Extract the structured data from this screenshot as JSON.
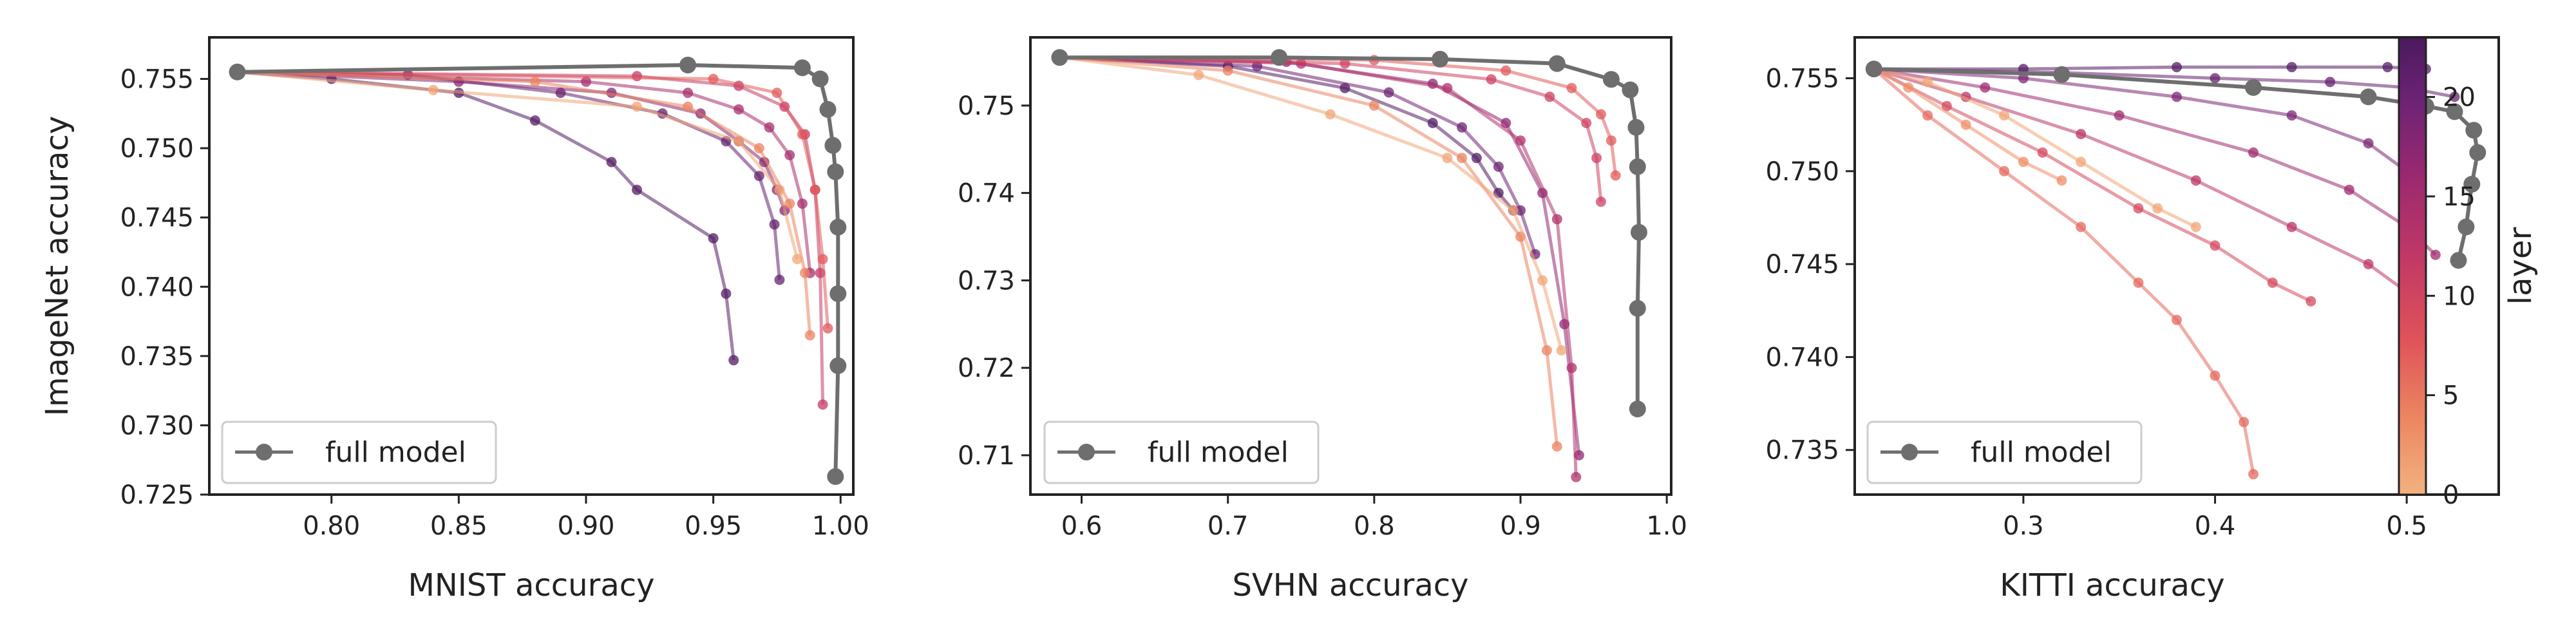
{
  "chart_data": [
    {
      "type": "line",
      "xlabel": "MNIST accuracy",
      "ylabel": "ImageNet accuracy",
      "xlim": [
        0.752,
        1.005
      ],
      "ylim": [
        0.725,
        0.758
      ],
      "xticks": [
        0.8,
        0.85,
        0.9,
        0.95,
        1.0
      ],
      "xtick_labels": [
        "0.80",
        "0.85",
        "0.90",
        "0.95",
        "1.00"
      ],
      "yticks": [
        0.725,
        0.73,
        0.735,
        0.74,
        0.745,
        0.75,
        0.755
      ],
      "ytick_labels": [
        "0.725",
        "0.730",
        "0.735",
        "0.740",
        "0.745",
        "0.750",
        "0.755"
      ],
      "legend": {
        "label": "full model",
        "placement": "lower-left"
      },
      "full_model": {
        "name": "full model",
        "x": [
          0.763,
          0.94,
          0.985,
          0.992,
          0.995,
          0.997,
          0.998,
          0.999,
          0.999,
          0.999,
          0.998
        ],
        "y": [
          0.7555,
          0.756,
          0.7558,
          0.755,
          0.7528,
          0.7502,
          0.7483,
          0.7443,
          0.7395,
          0.7343,
          0.7263
        ]
      },
      "layer_series": [
        {
          "layer": 22,
          "x": [
            0.763,
            0.8,
            0.85,
            0.88,
            0.91,
            0.92,
            0.95,
            0.955,
            0.958
          ],
          "y": [
            0.7555,
            0.755,
            0.754,
            0.752,
            0.749,
            0.747,
            0.7435,
            0.7395,
            0.7347
          ]
        },
        {
          "layer": 20,
          "x": [
            0.763,
            0.83,
            0.89,
            0.93,
            0.955,
            0.968,
            0.974,
            0.976
          ],
          "y": [
            0.7555,
            0.7553,
            0.754,
            0.7525,
            0.7505,
            0.748,
            0.7445,
            0.7405
          ]
        },
        {
          "layer": 17,
          "x": [
            0.763,
            0.85,
            0.91,
            0.945,
            0.96,
            0.97,
            0.975,
            0.978
          ],
          "y": [
            0.7555,
            0.7548,
            0.754,
            0.7525,
            0.7505,
            0.749,
            0.747,
            0.7455
          ]
        },
        {
          "layer": 14,
          "x": [
            0.763,
            0.9,
            0.94,
            0.96,
            0.972,
            0.98,
            0.985,
            0.988
          ],
          "y": [
            0.7555,
            0.7548,
            0.754,
            0.7528,
            0.7515,
            0.7495,
            0.746,
            0.741
          ]
        },
        {
          "layer": 11,
          "x": [
            0.763,
            0.92,
            0.96,
            0.978,
            0.986,
            0.99,
            0.992,
            0.993
          ],
          "y": [
            0.7555,
            0.7552,
            0.7545,
            0.753,
            0.751,
            0.747,
            0.741,
            0.7315
          ]
        },
        {
          "layer": 7,
          "x": [
            0.763,
            0.95,
            0.975,
            0.985,
            0.99,
            0.993,
            0.995
          ],
          "y": [
            0.7555,
            0.755,
            0.754,
            0.751,
            0.747,
            0.742,
            0.737
          ]
        },
        {
          "layer": 4,
          "x": [
            0.763,
            0.88,
            0.94,
            0.968,
            0.98,
            0.986,
            0.988
          ],
          "y": [
            0.7555,
            0.7548,
            0.753,
            0.75,
            0.746,
            0.741,
            0.7365
          ]
        },
        {
          "layer": 1,
          "x": [
            0.763,
            0.84,
            0.92,
            0.96,
            0.976,
            0.983
          ],
          "y": [
            0.7555,
            0.7542,
            0.753,
            0.7505,
            0.747,
            0.742
          ]
        }
      ]
    },
    {
      "type": "line",
      "xlabel": "SVHN accuracy",
      "ylabel": "",
      "xlim": [
        0.565,
        1.003
      ],
      "ylim": [
        0.7055,
        0.7578
      ],
      "xticks": [
        0.6,
        0.7,
        0.8,
        0.9,
        1.0
      ],
      "xtick_labels": [
        "0.6",
        "0.7",
        "0.8",
        "0.9",
        "1.0"
      ],
      "yticks": [
        0.71,
        0.72,
        0.73,
        0.74,
        0.75
      ],
      "ytick_labels": [
        "0.71",
        "0.72",
        "0.73",
        "0.74",
        "0.75"
      ],
      "legend": {
        "label": "full model",
        "placement": "lower-left"
      },
      "full_model": {
        "name": "full model",
        "x": [
          0.585,
          0.735,
          0.845,
          0.925,
          0.962,
          0.975,
          0.979,
          0.98,
          0.981,
          0.98,
          0.98
        ],
        "y": [
          0.7555,
          0.7555,
          0.7553,
          0.7548,
          0.753,
          0.7518,
          0.7475,
          0.743,
          0.7355,
          0.7268,
          0.7153
        ]
      },
      "layer_series": [
        {
          "layer": 22,
          "x": [
            0.585,
            0.7,
            0.78,
            0.84,
            0.87,
            0.885,
            0.895
          ],
          "y": [
            0.7555,
            0.7545,
            0.752,
            0.748,
            0.744,
            0.74,
            0.738
          ]
        },
        {
          "layer": 19,
          "x": [
            0.585,
            0.72,
            0.81,
            0.86,
            0.885,
            0.9,
            0.91
          ],
          "y": [
            0.7555,
            0.7545,
            0.7515,
            0.7475,
            0.743,
            0.738,
            0.733
          ]
        },
        {
          "layer": 16,
          "x": [
            0.585,
            0.74,
            0.84,
            0.89,
            0.915,
            0.93,
            0.94
          ],
          "y": [
            0.7555,
            0.755,
            0.7525,
            0.748,
            0.74,
            0.725,
            0.71
          ]
        },
        {
          "layer": 13,
          "x": [
            0.585,
            0.75,
            0.85,
            0.9,
            0.925,
            0.935,
            0.938
          ],
          "y": [
            0.7555,
            0.7548,
            0.752,
            0.746,
            0.737,
            0.72,
            0.7075
          ]
        },
        {
          "layer": 10,
          "x": [
            0.585,
            0.78,
            0.88,
            0.92,
            0.945,
            0.952,
            0.955
          ],
          "y": [
            0.7555,
            0.7548,
            0.753,
            0.751,
            0.748,
            0.744,
            0.739
          ]
        },
        {
          "layer": 7,
          "x": [
            0.585,
            0.8,
            0.89,
            0.935,
            0.955,
            0.962,
            0.965
          ],
          "y": [
            0.7555,
            0.7552,
            0.754,
            0.752,
            0.749,
            0.746,
            0.742
          ]
        },
        {
          "layer": 4,
          "x": [
            0.585,
            0.7,
            0.8,
            0.86,
            0.9,
            0.918,
            0.925
          ],
          "y": [
            0.7555,
            0.754,
            0.75,
            0.744,
            0.735,
            0.722,
            0.711
          ]
        },
        {
          "layer": 1,
          "x": [
            0.585,
            0.68,
            0.77,
            0.85,
            0.895,
            0.915,
            0.928
          ],
          "y": [
            0.7555,
            0.7535,
            0.749,
            0.744,
            0.738,
            0.73,
            0.722
          ]
        }
      ]
    },
    {
      "type": "line",
      "xlabel": "KITTI accuracy",
      "ylabel": "",
      "xlim": [
        0.212,
        0.548
      ],
      "ylim": [
        0.7326,
        0.7572
      ],
      "xticks": [
        0.3,
        0.4,
        0.5
      ],
      "xtick_labels": [
        "0.3",
        "0.4",
        "0.5"
      ],
      "yticks": [
        0.735,
        0.74,
        0.745,
        0.75,
        0.755
      ],
      "ytick_labels": [
        "0.735",
        "0.740",
        "0.745",
        "0.750",
        "0.755"
      ],
      "legend": {
        "label": "full model",
        "placement": "lower-left"
      },
      "full_model": {
        "name": "full model",
        "x": [
          0.222,
          0.32,
          0.42,
          0.48,
          0.51,
          0.525,
          0.535,
          0.537,
          0.534,
          0.531,
          0.527
        ],
        "y": [
          0.7555,
          0.7552,
          0.7545,
          0.754,
          0.7535,
          0.7532,
          0.7522,
          0.751,
          0.7493,
          0.747,
          0.7452
        ]
      },
      "layer_series": [
        {
          "layer": 22,
          "x": [
            0.222,
            0.3,
            0.38,
            0.44,
            0.49,
            0.51
          ],
          "y": [
            0.7555,
            0.7555,
            0.7556,
            0.7556,
            0.7556,
            0.7555
          ]
        },
        {
          "layer": 20,
          "x": [
            0.222,
            0.32,
            0.4,
            0.46,
            0.5,
            0.525
          ],
          "y": [
            0.7555,
            0.7553,
            0.755,
            0.7548,
            0.7545,
            0.754
          ]
        },
        {
          "layer": 18,
          "x": [
            0.222,
            0.3,
            0.38,
            0.44,
            0.48,
            0.5
          ],
          "y": [
            0.7555,
            0.755,
            0.754,
            0.753,
            0.7515,
            0.75
          ]
        },
        {
          "layer": 15,
          "x": [
            0.222,
            0.28,
            0.35,
            0.42,
            0.47,
            0.5,
            0.515
          ],
          "y": [
            0.7555,
            0.7545,
            0.753,
            0.751,
            0.749,
            0.747,
            0.7455
          ]
        },
        {
          "layer": 12,
          "x": [
            0.222,
            0.27,
            0.33,
            0.39,
            0.44,
            0.48,
            0.5
          ],
          "y": [
            0.7555,
            0.754,
            0.752,
            0.7495,
            0.747,
            0.745,
            0.7435
          ]
        },
        {
          "layer": 9,
          "x": [
            0.222,
            0.26,
            0.31,
            0.36,
            0.4,
            0.43,
            0.45
          ],
          "y": [
            0.7555,
            0.7535,
            0.751,
            0.748,
            0.746,
            0.744,
            0.743
          ]
        },
        {
          "layer": 6,
          "x": [
            0.222,
            0.25,
            0.29,
            0.33,
            0.36,
            0.38,
            0.4,
            0.415,
            0.42
          ],
          "y": [
            0.7555,
            0.753,
            0.75,
            0.747,
            0.744,
            0.742,
            0.739,
            0.7365,
            0.7337
          ]
        },
        {
          "layer": 3,
          "x": [
            0.222,
            0.24,
            0.27,
            0.3,
            0.32
          ],
          "y": [
            0.7555,
            0.7545,
            0.7525,
            0.7505,
            0.7495
          ]
        },
        {
          "layer": 1,
          "x": [
            0.222,
            0.25,
            0.29,
            0.33,
            0.37,
            0.39
          ],
          "y": [
            0.7555,
            0.7548,
            0.753,
            0.7505,
            0.748,
            0.747
          ]
        }
      ]
    }
  ],
  "colorbar": {
    "label": "layer",
    "min": 0,
    "max": 23,
    "ticks": [
      0,
      5,
      10,
      15,
      20
    ],
    "tick_labels": [
      "0",
      "5",
      "10",
      "15",
      "20"
    ],
    "colors": [
      "#f3b27f",
      "#ec8560",
      "#e0525a",
      "#c13866",
      "#9a2870",
      "#6d2374",
      "#4a1a5e"
    ]
  },
  "colors": {
    "full_model": "#6e6e6e",
    "axes": "#222222",
    "legend_frame": "#cccccc"
  }
}
